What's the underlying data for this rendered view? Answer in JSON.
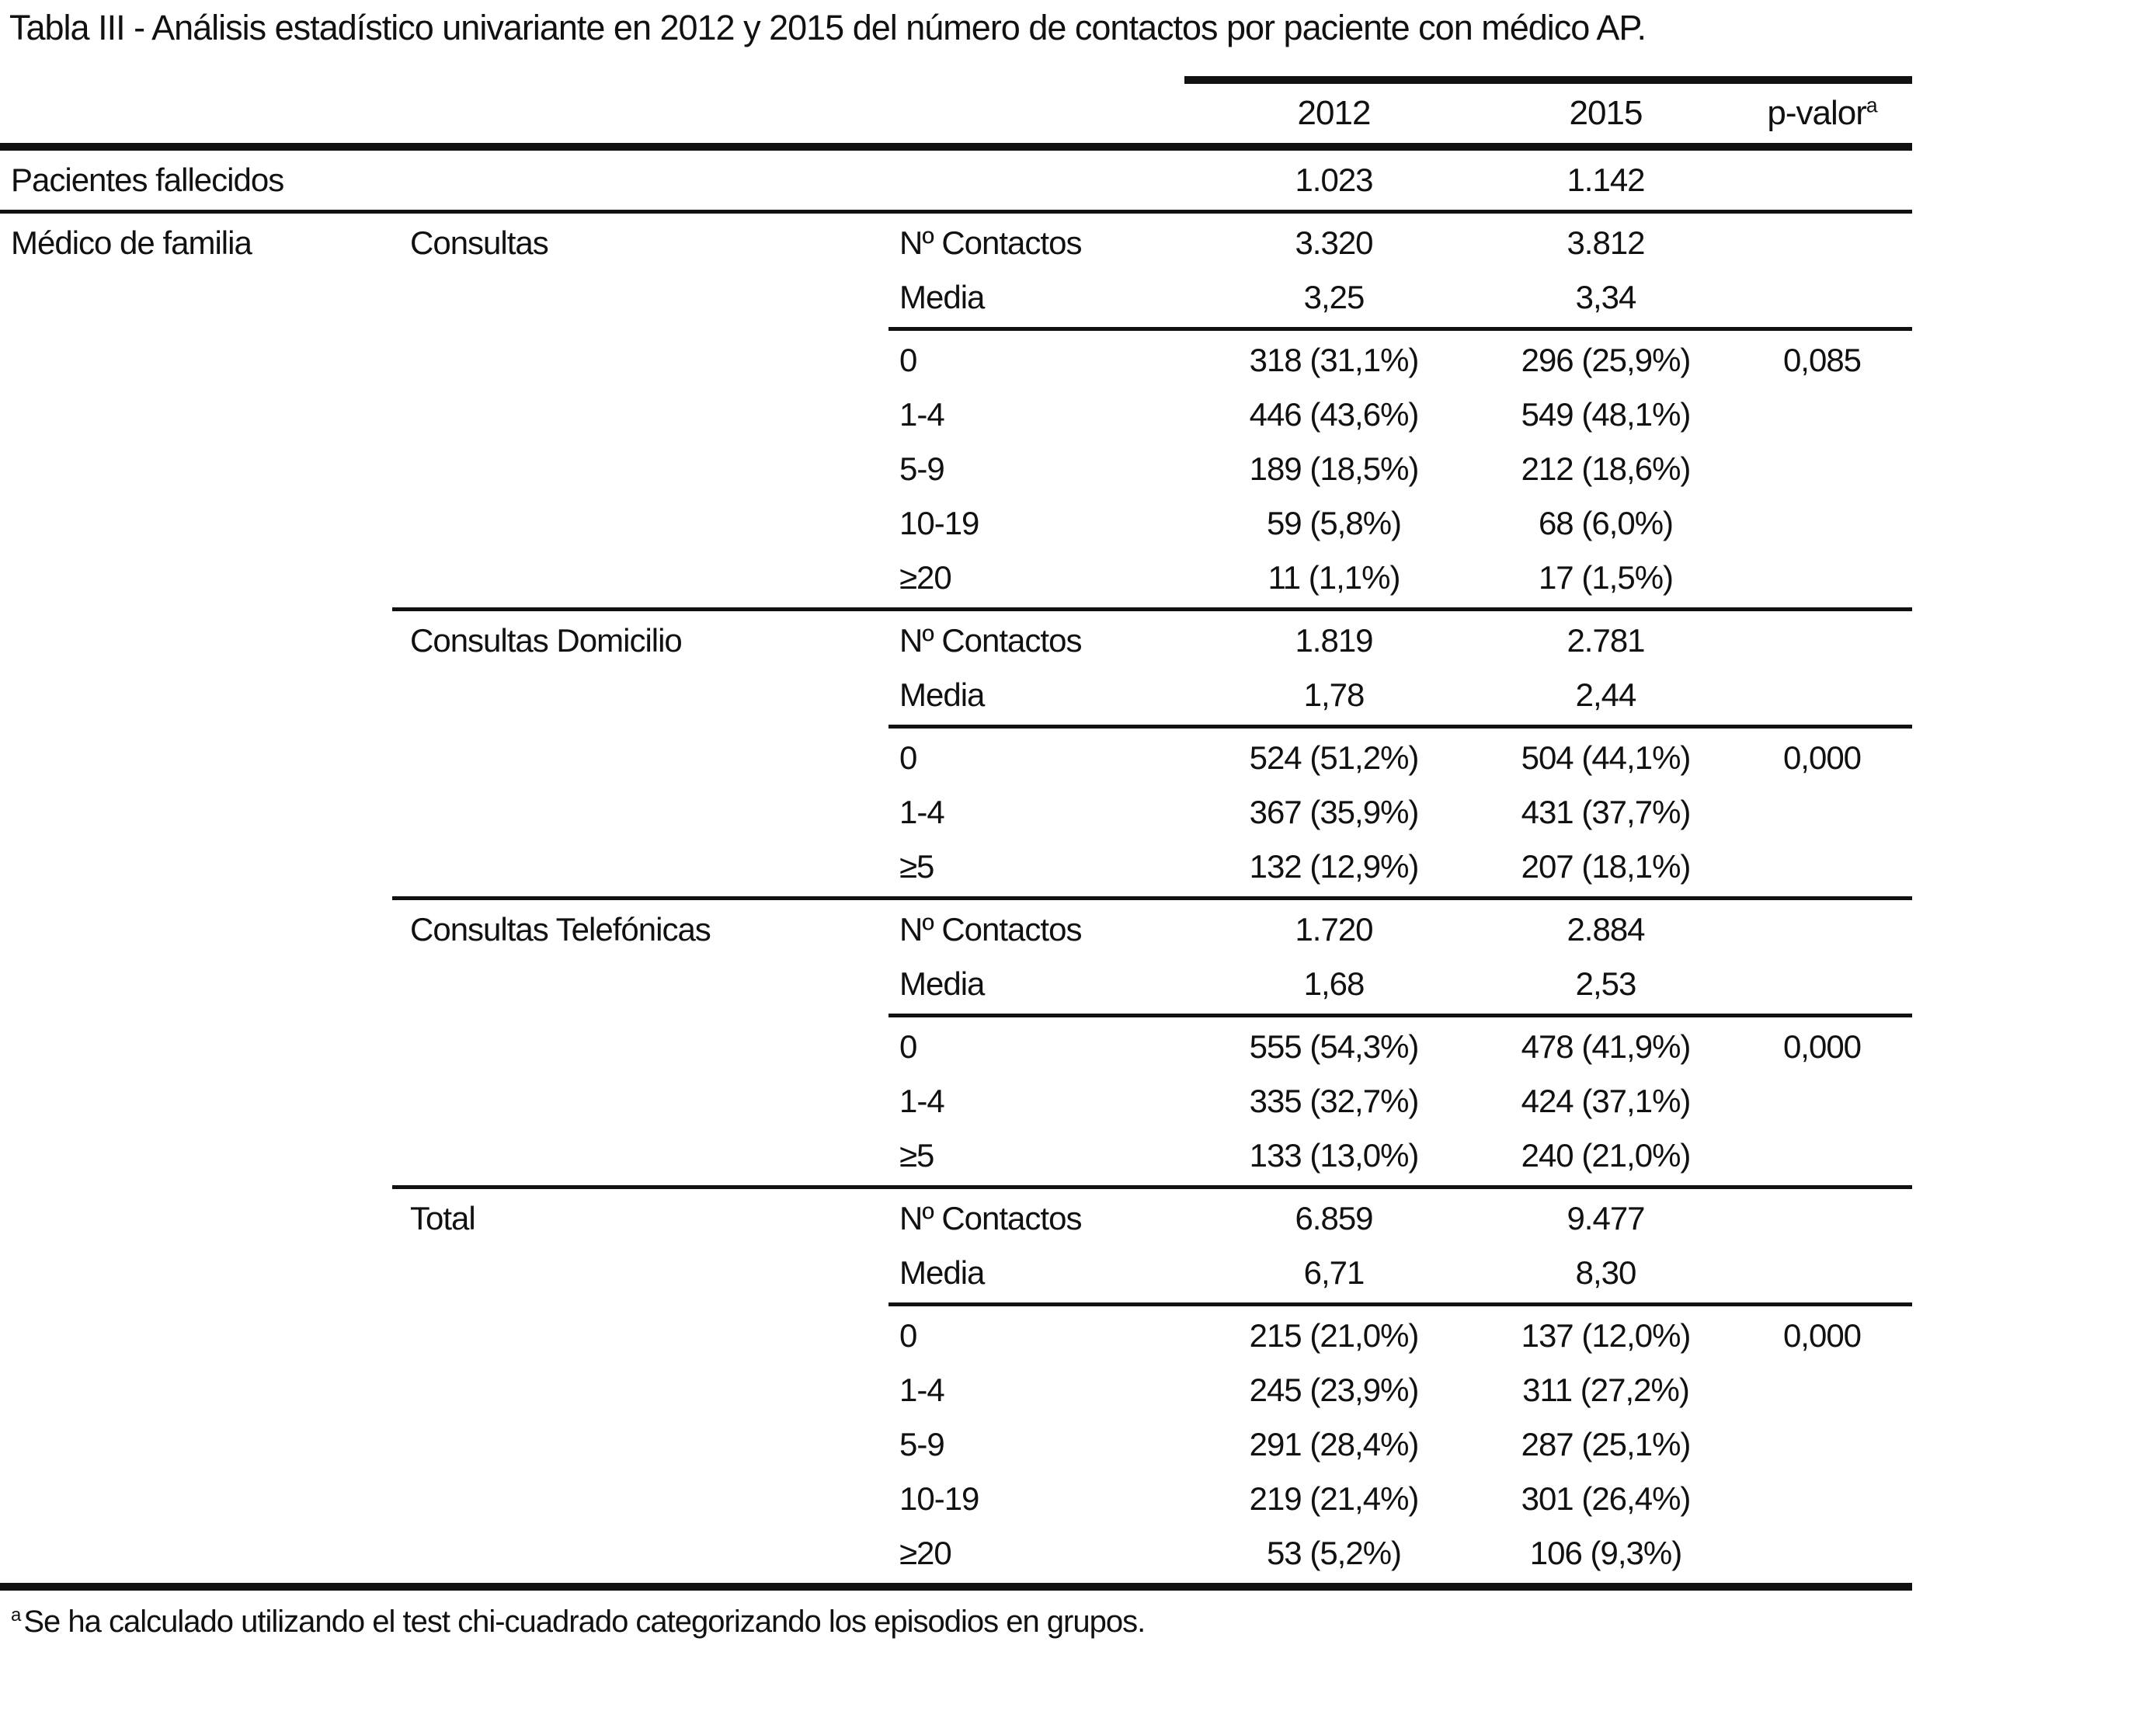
{
  "title": "Tabla III - Análisis estadístico univariante en 2012 y 2015 del número de contactos por paciente con médico AP.",
  "colors": {
    "background": "#ffffff",
    "text": "#111111",
    "rule": "#111111"
  },
  "table": {
    "header": {
      "y2012": "2012",
      "y2015": "2015",
      "p_label": "p-valor",
      "p_sup": "a"
    },
    "rows": [
      {
        "rule": "full-double",
        "c1": "Pacientes fallecidos",
        "c2": "",
        "c3": "",
        "c4": "1.023",
        "c5": "1.142",
        "c6": ""
      },
      {
        "rule": "full-single",
        "c1": "Médico de familia",
        "c2": "Consultas",
        "c3": "Nº Contactos",
        "c4": "3.320",
        "c5": "3.812",
        "c6": ""
      },
      {
        "rule": null,
        "c1": "",
        "c2": "",
        "c3": "Media",
        "c4": "3,25",
        "c5": "3,34",
        "c6": ""
      },
      {
        "rule": "col3",
        "c1": "",
        "c2": "",
        "c3": "0",
        "c4": "318 (31,1%)",
        "c5": "296 (25,9%)",
        "c6": "0,085"
      },
      {
        "rule": null,
        "c1": "",
        "c2": "",
        "c3": "1-4",
        "c4": "446 (43,6%)",
        "c5": "549 (48,1%)",
        "c6": ""
      },
      {
        "rule": null,
        "c1": "",
        "c2": "",
        "c3": "5-9",
        "c4": "189 (18,5%)",
        "c5": "212 (18,6%)",
        "c6": ""
      },
      {
        "rule": null,
        "c1": "",
        "c2": "",
        "c3": "10-19",
        "c4": "59 (5,8%)",
        "c5": "68 (6,0%)",
        "c6": ""
      },
      {
        "rule": null,
        "c1": "",
        "c2": "",
        "c3": "≥20",
        "c4": "11 (1,1%)",
        "c5": "17 (1,5%)",
        "c6": ""
      },
      {
        "rule": "col2",
        "c1": "",
        "c2": "Consultas Domicilio",
        "c3": "Nº Contactos",
        "c4": "1.819",
        "c5": "2.781",
        "c6": ""
      },
      {
        "rule": null,
        "c1": "",
        "c2": "",
        "c3": "Media",
        "c4": "1,78",
        "c5": "2,44",
        "c6": ""
      },
      {
        "rule": "col3",
        "c1": "",
        "c2": "",
        "c3": "0",
        "c4": "524 (51,2%)",
        "c5": "504 (44,1%)",
        "c6": "0,000"
      },
      {
        "rule": null,
        "c1": "",
        "c2": "",
        "c3": "1-4",
        "c4": "367 (35,9%)",
        "c5": "431 (37,7%)",
        "c6": ""
      },
      {
        "rule": null,
        "c1": "",
        "c2": "",
        "c3": "≥5",
        "c4": "132 (12,9%)",
        "c5": "207 (18,1%)",
        "c6": ""
      },
      {
        "rule": "col2",
        "c1": "",
        "c2": "Consultas Telefónicas",
        "c3": "Nº Contactos",
        "c4": "1.720",
        "c5": "2.884",
        "c6": ""
      },
      {
        "rule": null,
        "c1": "",
        "c2": "",
        "c3": "Media",
        "c4": "1,68",
        "c5": "2,53",
        "c6": ""
      },
      {
        "rule": "col3",
        "c1": "",
        "c2": "",
        "c3": "0",
        "c4": "555 (54,3%)",
        "c5": "478 (41,9%)",
        "c6": "0,000"
      },
      {
        "rule": null,
        "c1": "",
        "c2": "",
        "c3": "1-4",
        "c4": "335 (32,7%)",
        "c5": "424 (37,1%)",
        "c6": ""
      },
      {
        "rule": null,
        "c1": "",
        "c2": "",
        "c3": "≥5",
        "c4": "133 (13,0%)",
        "c5": "240 (21,0%)",
        "c6": ""
      },
      {
        "rule": "col2",
        "c1": "",
        "c2": "Total",
        "c3": "Nº Contactos",
        "c4": "6.859",
        "c5": "9.477",
        "c6": ""
      },
      {
        "rule": null,
        "c1": "",
        "c2": "",
        "c3": "Media",
        "c4": "6,71",
        "c5": "8,30",
        "c6": ""
      },
      {
        "rule": "col3",
        "c1": "",
        "c2": "",
        "c3": "0",
        "c4": "215 (21,0%)",
        "c5": "137 (12,0%)",
        "c6": "0,000"
      },
      {
        "rule": null,
        "c1": "",
        "c2": "",
        "c3": "1-4",
        "c4": "245 (23,9%)",
        "c5": "311 (27,2%)",
        "c6": ""
      },
      {
        "rule": null,
        "c1": "",
        "c2": "",
        "c3": "5-9",
        "c4": "291 (28,4%)",
        "c5": "287 (25,1%)",
        "c6": ""
      },
      {
        "rule": null,
        "c1": "",
        "c2": "",
        "c3": "10-19",
        "c4": "219 (21,4%)",
        "c5": "301 (26,4%)",
        "c6": ""
      },
      {
        "rule": null,
        "c1": "",
        "c2": "",
        "c3": "≥20",
        "c4": "53 (5,2%)",
        "c5": "106 (9,3%)",
        "c6": ""
      }
    ]
  },
  "footnote": {
    "sup": "a",
    "text": "Se ha calculado utilizando el test chi-cuadrado categorizando los episodios en grupos."
  }
}
